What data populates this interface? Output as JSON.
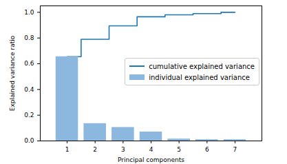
{
  "chart_data": {
    "type": "bar",
    "xlabel": "Principal components",
    "ylabel": "Explained variance ratio",
    "x": [
      1,
      2,
      3,
      4,
      5,
      6,
      7
    ],
    "series": [
      {
        "name": "cumulative explained variance",
        "type": "line",
        "line_style": "step",
        "color": "#1f77b4",
        "values": [
          0.655,
          0.79,
          0.895,
          0.965,
          0.98,
          0.99,
          1.0
        ]
      },
      {
        "name": "individual explained variance",
        "type": "bar",
        "color": "#8cb7de",
        "values": [
          0.655,
          0.135,
          0.105,
          0.07,
          0.015,
          0.01,
          0.01
        ]
      }
    ],
    "xlim": [
      0.04,
      7.96
    ],
    "xticks": [
      1,
      2,
      3,
      4,
      5,
      6,
      7
    ],
    "ylim": [
      0,
      1.05
    ],
    "yticks": [
      {
        "value": 0,
        "label": "0.0"
      },
      {
        "value": 0.2,
        "label": "0.2"
      },
      {
        "value": 0.4,
        "label": "0.4"
      },
      {
        "value": 0.6,
        "label": "0.6"
      },
      {
        "value": 0.8,
        "label": "0.8"
      },
      {
        "value": 1.0,
        "label": "1.0"
      }
    ],
    "legend": "center right"
  }
}
